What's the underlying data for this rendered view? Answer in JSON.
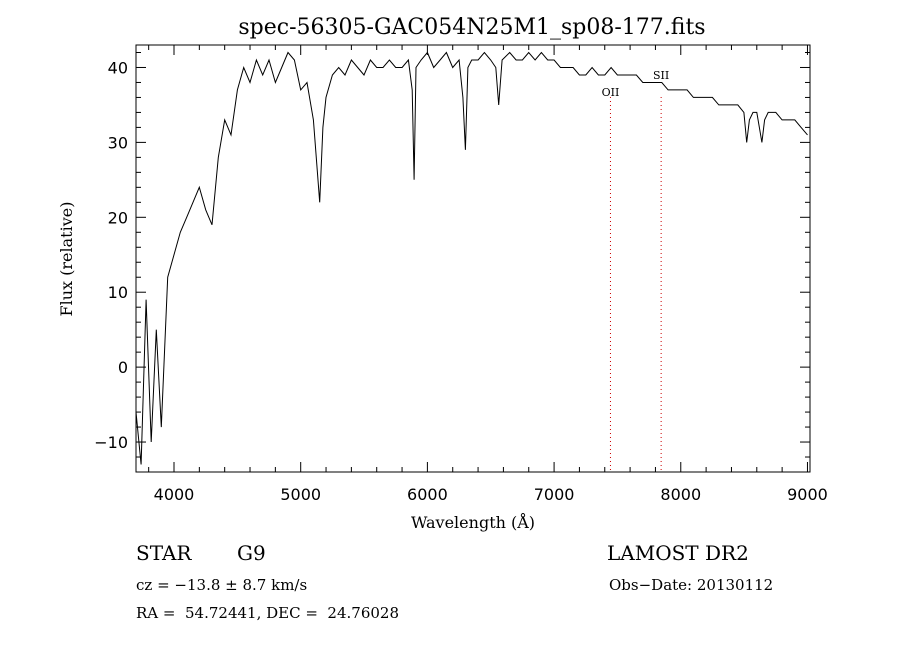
{
  "chart_data": {
    "type": "line",
    "title": "spec-56305-GAC054N25M1_sp08-177.fits",
    "xlabel": "Wavelength (Å)",
    "ylabel": "Flux (relative)",
    "xlim": [
      3700,
      9020
    ],
    "ylim": [
      -14,
      43
    ],
    "xticks": [
      4000,
      5000,
      6000,
      7000,
      8000,
      9000
    ],
    "yticks": [
      -10,
      0,
      10,
      20,
      30,
      40
    ],
    "grid": false,
    "series": [
      {
        "x": [
          3700,
          3740,
          3780,
          3820,
          3860,
          3900,
          3950,
          4000,
          4050,
          4100,
          4150,
          4200,
          4250,
          4300,
          4350,
          4400,
          4450,
          4500,
          4550,
          4600,
          4650,
          4700,
          4750,
          4800,
          4850,
          4900,
          4950,
          5000,
          5050,
          5100,
          5150,
          5175,
          5200,
          5250,
          5300,
          5350,
          5400,
          5450,
          5500,
          5550,
          5600,
          5650,
          5700,
          5750,
          5800,
          5850,
          5880,
          5895,
          5910,
          5950,
          6000,
          6050,
          6100,
          6150,
          6200,
          6250,
          6280,
          6300,
          6320,
          6350,
          6400,
          6450,
          6500,
          6540,
          6563,
          6590,
          6650,
          6700,
          6750,
          6800,
          6850,
          6900,
          6950,
          7000,
          7050,
          7100,
          7150,
          7200,
          7250,
          7300,
          7350,
          7400,
          7450,
          7500,
          7550,
          7600,
          7650,
          7700,
          7750,
          7800,
          7850,
          7900,
          7950,
          8000,
          8050,
          8100,
          8150,
          8200,
          8250,
          8300,
          8350,
          8400,
          8450,
          8498,
          8520,
          8542,
          8570,
          8600,
          8640,
          8662,
          8690,
          8750,
          8800,
          8850,
          8900,
          8950,
          9000
        ],
        "y": [
          -6,
          -13,
          9,
          -10,
          5,
          -8,
          12,
          15,
          18,
          20,
          22,
          24,
          21,
          19,
          28,
          33,
          31,
          37,
          40,
          38,
          41,
          39,
          41,
          38,
          40,
          42,
          41,
          37,
          38,
          33,
          22,
          32,
          36,
          39,
          40,
          39,
          41,
          40,
          39,
          41,
          40,
          40,
          41,
          40,
          40,
          41,
          37,
          25,
          40,
          41,
          42,
          40,
          41,
          42,
          40,
          41,
          36,
          29,
          40,
          41,
          41,
          42,
          41,
          40,
          35,
          41,
          42,
          41,
          41,
          42,
          41,
          42,
          41,
          41,
          40,
          40,
          40,
          39,
          39,
          40,
          39,
          39,
          40,
          39,
          39,
          39,
          39,
          38,
          38,
          38,
          38,
          37,
          37,
          37,
          37,
          36,
          36,
          36,
          36,
          35,
          35,
          35,
          35,
          34,
          30,
          33,
          34,
          34,
          30,
          33,
          34,
          34,
          33,
          33,
          33,
          32,
          31
        ]
      }
    ],
    "annotations": [
      {
        "label": "OII",
        "x": 7445
      },
      {
        "label": "SII",
        "x": 7845
      }
    ],
    "line_color": "#000000",
    "marker_color": "#cc0000"
  },
  "info": {
    "class_label": "STAR",
    "subclass_label": "G9",
    "cz": "cz = −13.8 ± 8.7 km/s",
    "coords": "RA =  54.72441, DEC =  24.76028",
    "survey": "LAMOST DR2",
    "obs_date": "Obs−Date: 20130112"
  }
}
